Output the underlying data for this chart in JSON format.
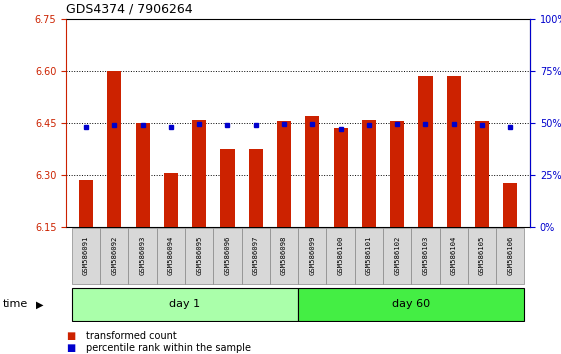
{
  "title": "GDS4374 / 7906264",
  "samples": [
    "GSM586091",
    "GSM586092",
    "GSM586093",
    "GSM586094",
    "GSM586095",
    "GSM586096",
    "GSM586097",
    "GSM586098",
    "GSM586099",
    "GSM586100",
    "GSM586101",
    "GSM586102",
    "GSM586103",
    "GSM586104",
    "GSM586105",
    "GSM586106"
  ],
  "bar_values": [
    6.285,
    6.6,
    6.45,
    6.305,
    6.46,
    6.375,
    6.375,
    6.455,
    6.47,
    6.435,
    6.46,
    6.455,
    6.585,
    6.585,
    6.455,
    6.275
  ],
  "percentile_values": [
    6.438,
    6.445,
    6.443,
    6.438,
    6.447,
    6.443,
    6.443,
    6.447,
    6.447,
    6.433,
    6.443,
    6.447,
    6.447,
    6.447,
    6.443,
    6.438
  ],
  "ymin": 6.15,
  "ymax": 6.75,
  "yticks": [
    6.15,
    6.3,
    6.45,
    6.6,
    6.75
  ],
  "y2min": 0,
  "y2max": 100,
  "y2ticks": [
    0,
    25,
    50,
    75,
    100
  ],
  "bar_color": "#cc2200",
  "marker_color": "#0000cc",
  "bar_width": 0.5,
  "base_value": 6.15,
  "groups": [
    {
      "label": "day 1",
      "start": 0,
      "end": 7,
      "color": "#aaffaa"
    },
    {
      "label": "day 60",
      "start": 8,
      "end": 15,
      "color": "#44ee44"
    }
  ],
  "xlabel": "time",
  "legend_items": [
    {
      "label": "transformed count",
      "color": "#cc2200"
    },
    {
      "label": "percentile rank within the sample",
      "color": "#0000cc"
    }
  ],
  "grid_linestyle": "dotted",
  "tick_label_bg": "#d8d8d8"
}
